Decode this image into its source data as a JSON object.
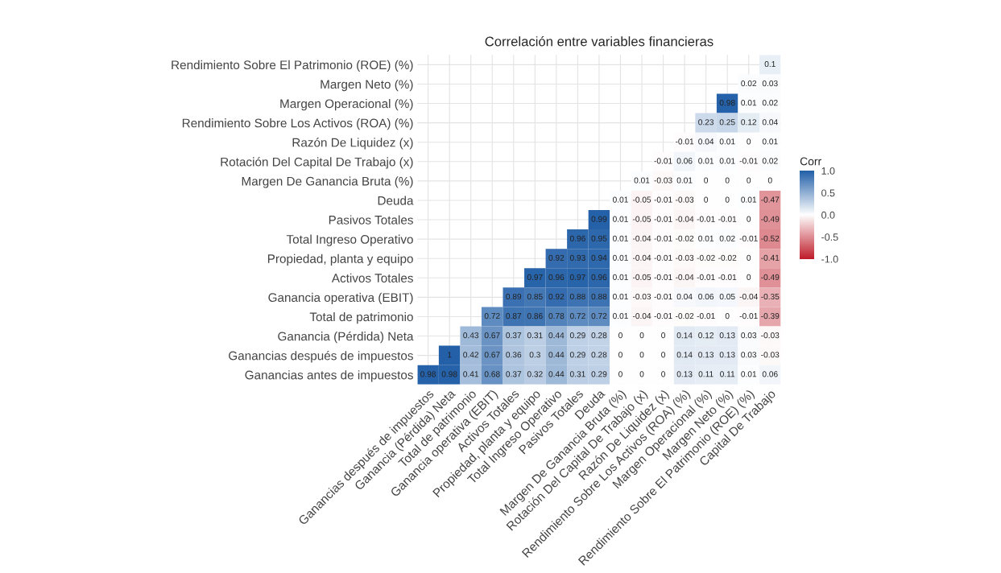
{
  "chart_data": {
    "type": "heatmap",
    "title": "Correlación entre variables financieras",
    "categories": [
      "Ganancias después de impuestos",
      "Ganancia (Pérdida) Neta",
      "Total de patrimonio",
      "Ganancia operativa (EBIT)",
      "Activos Totales",
      "Propiedad, planta y equipo",
      "Total Ingreso Operativo",
      "Pasivos Totales",
      "Deuda",
      "Margen De Ganancia Bruta (%)",
      "Rotación Del Capital De Trabajo (x)",
      "Razón De Liquidez (x)",
      "Rendimiento Sobre Los Activos (ROA) (%)",
      "Margen Operacional (%)",
      "Margen Neto (%)",
      "Rendimiento Sobre El Patrimonio (ROE) (%)",
      "Capital De Trabajo"
    ],
    "y_categories": [
      "Rendimiento Sobre El Patrimonio (ROE) (%)",
      "Margen Neto (%)",
      "Margen Operacional (%)",
      "Rendimiento Sobre Los Activos (ROA) (%)",
      "Razón De Liquidez (x)",
      "Rotación Del Capital De Trabajo (x)",
      "Margen De Ganancia Bruta (%)",
      "Deuda",
      "Pasivos Totales",
      "Total Ingreso Operativo",
      "Propiedad, planta y equipo",
      "Activos Totales",
      "Ganancia operativa (EBIT)",
      "Total de patrimonio",
      "Ganancia (Pérdida) Neta",
      "Ganancias después de impuestos",
      "Ganancias antes de impuestos"
    ],
    "cells": [
      [
        null,
        null,
        null,
        null,
        null,
        null,
        null,
        null,
        null,
        null,
        null,
        null,
        null,
        null,
        null,
        null,
        0.1
      ],
      [
        null,
        null,
        null,
        null,
        null,
        null,
        null,
        null,
        null,
        null,
        null,
        null,
        null,
        null,
        null,
        0.02,
        0.03
      ],
      [
        null,
        null,
        null,
        null,
        null,
        null,
        null,
        null,
        null,
        null,
        null,
        null,
        null,
        null,
        0.98,
        0.01,
        0.02
      ],
      [
        null,
        null,
        null,
        null,
        null,
        null,
        null,
        null,
        null,
        null,
        null,
        null,
        null,
        0.23,
        0.25,
        0.12,
        0.04
      ],
      [
        null,
        null,
        null,
        null,
        null,
        null,
        null,
        null,
        null,
        null,
        null,
        null,
        -0.01,
        0.04,
        0.01,
        0,
        0.01
      ],
      [
        null,
        null,
        null,
        null,
        null,
        null,
        null,
        null,
        null,
        null,
        null,
        -0.01,
        0.06,
        0.01,
        0.01,
        -0.01,
        0.02
      ],
      [
        null,
        null,
        null,
        null,
        null,
        null,
        null,
        null,
        null,
        null,
        0.01,
        -0.03,
        0.01,
        0,
        0,
        0,
        0
      ],
      [
        null,
        null,
        null,
        null,
        null,
        null,
        null,
        null,
        null,
        0.01,
        -0.05,
        -0.01,
        -0.03,
        0,
        0,
        0.01,
        -0.47
      ],
      [
        null,
        null,
        null,
        null,
        null,
        null,
        null,
        null,
        0.99,
        0.01,
        -0.05,
        -0.01,
        -0.04,
        -0.01,
        -0.01,
        0,
        -0.49
      ],
      [
        null,
        null,
        null,
        null,
        null,
        null,
        null,
        0.96,
        0.95,
        0.01,
        -0.04,
        -0.01,
        -0.02,
        0.01,
        0.02,
        -0.01,
        -0.52
      ],
      [
        null,
        null,
        null,
        null,
        null,
        null,
        0.92,
        0.93,
        0.94,
        0.01,
        -0.04,
        -0.01,
        -0.03,
        -0.02,
        -0.02,
        0,
        -0.41
      ],
      [
        null,
        null,
        null,
        null,
        null,
        0.97,
        0.96,
        0.97,
        0.96,
        0.01,
        -0.05,
        -0.01,
        -0.04,
        -0.01,
        -0.01,
        0,
        -0.49
      ],
      [
        null,
        null,
        null,
        null,
        0.89,
        0.85,
        0.92,
        0.88,
        0.88,
        0.01,
        -0.03,
        -0.01,
        0.04,
        0.06,
        0.05,
        -0.04,
        -0.35
      ],
      [
        null,
        null,
        null,
        0.72,
        0.87,
        0.86,
        0.78,
        0.72,
        0.72,
        0.01,
        -0.04,
        -0.01,
        -0.02,
        -0.01,
        0,
        -0.01,
        -0.39
      ],
      [
        null,
        null,
        0.43,
        0.67,
        0.37,
        0.31,
        0.44,
        0.29,
        0.28,
        0,
        0,
        0,
        0.14,
        0.12,
        0.13,
        0.03,
        -0.03
      ],
      [
        null,
        1,
        0.42,
        0.67,
        0.36,
        0.3,
        0.44,
        0.29,
        0.28,
        0,
        0,
        0,
        0.14,
        0.13,
        0.13,
        0.03,
        -0.03
      ],
      [
        0.98,
        0.98,
        0.41,
        0.68,
        0.37,
        0.32,
        0.44,
        0.31,
        0.29,
        0,
        0,
        0,
        0.13,
        0.11,
        0.11,
        0.01,
        0.06
      ]
    ],
    "clabel": "Corr",
    "clim": [
      -1,
      1
    ],
    "cticks": [
      {
        "value": -1,
        "label": "-1.0"
      },
      {
        "value": -0.5,
        "label": "-0.5"
      },
      {
        "value": 0,
        "label": "0.0"
      },
      {
        "value": 0.5,
        "label": "0.5"
      },
      {
        "value": 1,
        "label": "1.0"
      }
    ],
    "data_labels": true,
    "grid": true
  }
}
